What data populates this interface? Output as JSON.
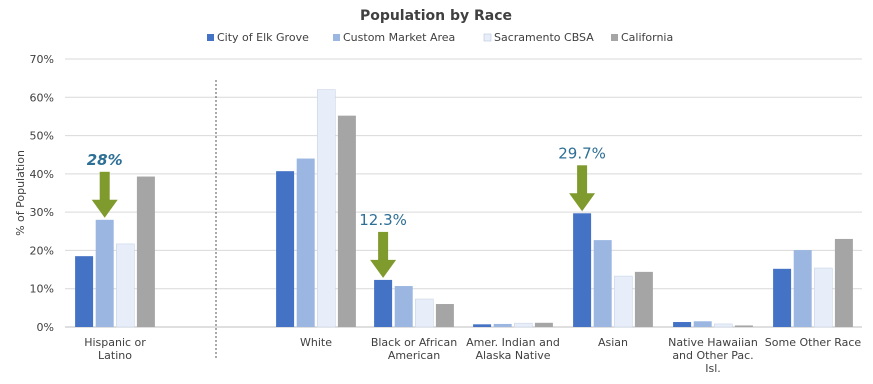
{
  "chart_data": {
    "type": "bar",
    "title": "Population by Race",
    "ylabel": "% of Population",
    "xlabel": "",
    "ylim": [
      0,
      70
    ],
    "yticks": [
      "0%",
      "10%",
      "20%",
      "30%",
      "40%",
      "50%",
      "60%",
      "70%"
    ],
    "grid": true,
    "legend_position": "top",
    "categories": [
      [
        "Hispanic or",
        "Latino"
      ],
      [
        "White"
      ],
      [
        "Black or African",
        "American"
      ],
      [
        "Amer. Indian and",
        "Alaska Native"
      ],
      [
        "Asian"
      ],
      [
        "Native Hawaiian",
        "and Other Pac.",
        "Isl."
      ],
      [
        "Some Other Race"
      ]
    ],
    "series": [
      {
        "name": "City of Elk Grove",
        "color": "#4472c4",
        "values": [
          18.5,
          40.7,
          12.3,
          0.7,
          29.7,
          1.3,
          15.2
        ]
      },
      {
        "name": "Custom Market Area",
        "color": "#9bb7e1",
        "values": [
          28.0,
          44.0,
          10.7,
          0.8,
          22.7,
          1.5,
          20.1
        ]
      },
      {
        "name": "Sacramento CBSA",
        "color": "#e7eef9",
        "values": [
          21.7,
          62.0,
          7.3,
          1.0,
          13.3,
          0.8,
          15.4
        ]
      },
      {
        "name": "California",
        "color": "#a5a5a5",
        "values": [
          39.3,
          55.2,
          6.0,
          1.1,
          14.4,
          0.4,
          23.0
        ]
      }
    ],
    "annotations": [
      {
        "text": "28%",
        "category_index": 0,
        "series_index": 1,
        "italic": true
      },
      {
        "text": "12.3%",
        "category_index": 2,
        "series_index": 0,
        "italic": false
      },
      {
        "text": "29.7%",
        "category_index": 4,
        "series_index": 0,
        "italic": false
      }
    ],
    "arrow_color": "#7f9a2d",
    "divider": "dashed vertical line between Hispanic or Latino and White"
  }
}
